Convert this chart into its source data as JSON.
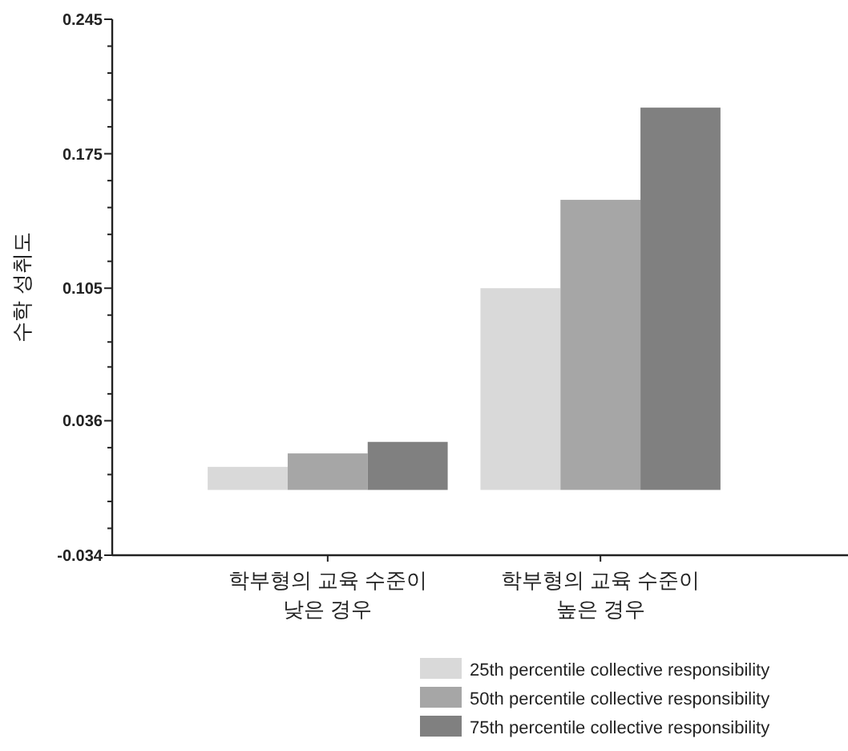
{
  "chart_data": {
    "type": "bar",
    "ylabel": "수학 성취도",
    "categories": [
      "학부형의 교육 수준이\n낮은 경우",
      "학부형의 교육 수준이\n높은 경우"
    ],
    "series": [
      {
        "name": "25th percentile collective responsibility",
        "color": "#d9d9d9",
        "values": [
          0.012,
          0.105
        ]
      },
      {
        "name": "50th percentile collective responsibility",
        "color": "#a6a6a6",
        "values": [
          0.019,
          0.151
        ]
      },
      {
        "name": "75th percentile collective responsibility",
        "color": "#808080",
        "values": [
          0.025,
          0.199
        ]
      }
    ],
    "ylim": [
      -0.034,
      0.245
    ],
    "yticks": [
      -0.034,
      {
        "value": -0.02,
        "label": null
      },
      {
        "value": -0.006,
        "label": null
      },
      {
        "value": 0.008,
        "label": null
      },
      {
        "value": 0.022,
        "label": null
      },
      0.036,
      {
        "value": 0.05,
        "label": null
      },
      {
        "value": 0.064,
        "label": null
      },
      {
        "value": 0.077,
        "label": null
      },
      {
        "value": 0.091,
        "label": null
      },
      0.105,
      {
        "value": 0.119,
        "label": null
      },
      {
        "value": 0.133,
        "label": null
      },
      {
        "value": 0.147,
        "label": null
      },
      {
        "value": 0.161,
        "label": null
      },
      0.175,
      {
        "value": 0.189,
        "label": null
      },
      {
        "value": 0.203,
        "label": null
      },
      {
        "value": 0.217,
        "label": null
      },
      {
        "value": 0.231,
        "label": null
      },
      0.245
    ],
    "legend": "bottom right"
  }
}
